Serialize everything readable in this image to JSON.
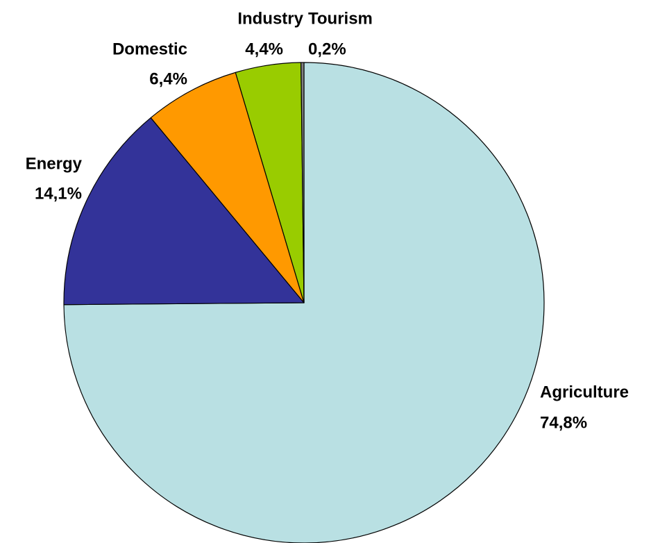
{
  "chart_data": {
    "type": "pie",
    "categories": [
      "Agriculture",
      "Energy",
      "Domestic",
      "Industry",
      "Tourism"
    ],
    "values": [
      74.8,
      14.1,
      6.4,
      4.4,
      0.2
    ],
    "value_labels": [
      "74,8%",
      "14,1%",
      "6,4%",
      "4,4%",
      "0,2%"
    ],
    "colors": [
      "#b9e0e3",
      "#333399",
      "#ff9900",
      "#99cc00",
      "#808080"
    ]
  }
}
